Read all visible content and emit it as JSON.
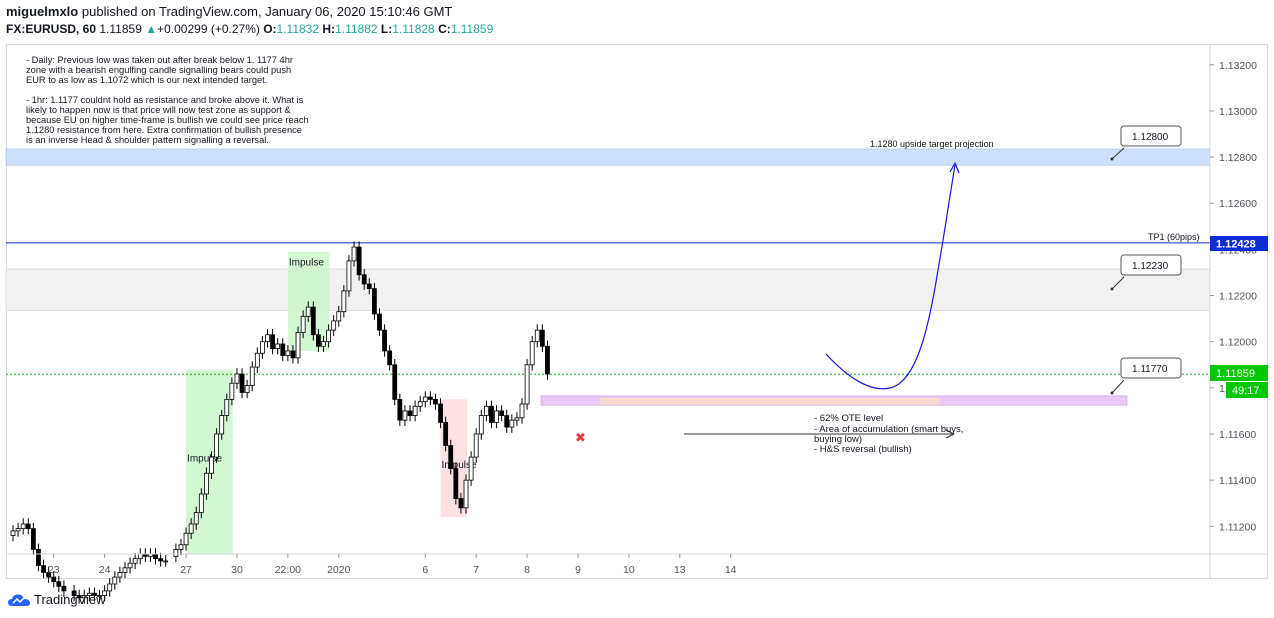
{
  "header": {
    "author": "miguelmxlo",
    "published_text": "published on TradingView.com, January 06, 2020 15:10:46 GMT",
    "symbol": "FX:EURUSD, 60",
    "last": "1.11859",
    "change": "+0.00299 (+0.27%)",
    "o_label": "O:",
    "o": "1.11832",
    "h_label": "H:",
    "h": "1.11882",
    "l_label": "L:",
    "l": "1.11828",
    "c_label": "C:",
    "c": "1.11859"
  },
  "notes": {
    "daily": "- Daily: Previous low was taken out after break below 1. 1177 4hr zone with a bearish engulfing candle signalling bears could push EUR to as low as 1.1072 which is our next intended target.",
    "hourly": "- 1hr: 1.1177 couldnt hold as resistance and broke above it. What is likely to happen now is that price will now test zone as support & because EU on higher time-frame is bullish we could see price reach 1.1280 resistance from here. Extra confirmation of bullish presence is an inverse Head & shoulder pattern signalling a reversal."
  },
  "annotations": {
    "target_projection": "1.1280 upside target projection",
    "tp1": "TP1 (60pips)",
    "impulse": "Impulse",
    "ote": "- 62% OTE level",
    "accumulation": "- Area of accumulation (smart buys,",
    "accumulation2": "buying low)",
    "hs": "- H&S reversal (bullish)"
  },
  "callouts": [
    "1.12800",
    "1.12230",
    "1.11770"
  ],
  "price_tags": {
    "tp1": "1.12428",
    "last": "1.11859",
    "countdown": "49:17"
  },
  "branding": {
    "name": "TradingView"
  },
  "colors": {
    "up": "#26a69a",
    "line_blue": "#0d2cd6",
    "last_green": "#00c800",
    "zone_blue": "#cfe0fa",
    "zone_gray": "#f1f1f1",
    "zone_purple": "#e8c8f5",
    "impulse_green": "#c8f5c8",
    "impulse_red": "#fadada"
  },
  "chart_data": {
    "type": "candlestick",
    "title": "FX:EURUSD, 60",
    "xlabel": "",
    "ylabel": "",
    "ylim": [
      1.1108,
      1.1329
    ],
    "y_ticks": [
      "1.13200",
      "1.13000",
      "1.12800",
      "1.12600",
      "1.12400",
      "1.12200",
      "1.12000",
      "1.11800",
      "1.11600",
      "1.11400",
      "1.11200"
    ],
    "y_tick_values": [
      1.132,
      1.13,
      1.128,
      1.126,
      1.124,
      1.122,
      1.12,
      1.118,
      1.116,
      1.114,
      1.112
    ],
    "x_ticks": [
      "23",
      "24",
      "27",
      "30",
      "22:00",
      "2020",
      "6",
      "7",
      "8",
      "9",
      "10",
      "13",
      "14"
    ],
    "x_tick_index": [
      8,
      18,
      34,
      44,
      54,
      64,
      81,
      91,
      101,
      111,
      121,
      131,
      141
    ],
    "close": [
      1.1118,
      1.1119,
      1.1121,
      1.1119,
      1.111,
      1.1103,
      1.11,
      1.1098,
      1.1096,
      1.1094,
      1.1092,
      1.1092,
      1.109,
      1.1089,
      1.109,
      1.1091,
      1.109,
      1.109,
      1.1092,
      1.1095,
      1.1098,
      1.11,
      1.1102,
      1.1104,
      1.1106,
      1.1108,
      1.1107,
      1.1108,
      1.1106,
      1.1105,
      1.1105,
      1.1107,
      1.111,
      1.1112,
      1.1117,
      1.1121,
      1.1126,
      1.1134,
      1.1143,
      1.115,
      1.116,
      1.1168,
      1.1175,
      1.1182,
      1.1186,
      1.1178,
      1.1181,
      1.1189,
      1.1195,
      1.12,
      1.1203,
      1.1197,
      1.1199,
      1.1194,
      1.1196,
      1.1193,
      1.1204,
      1.1211,
      1.1215,
      1.1203,
      1.1198,
      1.12,
      1.1205,
      1.1209,
      1.1213,
      1.1222,
      1.1235,
      1.1241,
      1.1229,
      1.1225,
      1.1223,
      1.1212,
      1.1205,
      1.1196,
      1.119,
      1.1175,
      1.1166,
      1.117,
      1.1168,
      1.1172,
      1.1174,
      1.1176,
      1.1175,
      1.1173,
      1.1165,
      1.1155,
      1.1145,
      1.1132,
      1.1128,
      1.114,
      1.115,
      1.116,
      1.1168,
      1.1172,
      1.1165,
      1.117,
      1.1168,
      1.1163,
      1.1166,
      1.1167,
      1.1173,
      1.119,
      1.12,
      1.1205,
      1.1198,
      1.1186
    ],
    "last_price": 1.11859,
    "levels": {
      "tp1": 1.12428,
      "callout_top": 1.128,
      "callout_mid": 1.1223,
      "callout_low": 1.1177
    },
    "zones": {
      "blue": [
        1.12765,
        1.12835
      ],
      "gray": [
        1.12135,
        1.12315
      ],
      "purple": [
        1.11725,
        1.11765
      ]
    },
    "impulse_boxes": [
      {
        "label": "Impulse",
        "i0": 34,
        "i1": 42,
        "y0": 1.1108,
        "y1": 1.1188,
        "color": "green"
      },
      {
        "label": "Impulse",
        "i0": 54,
        "i1": 61,
        "y0": 1.1196,
        "y1": 1.1239,
        "color": "green"
      },
      {
        "label": "Impulse",
        "i0": 84,
        "i1": 88,
        "y0": 1.1124,
        "y1": 1.1175,
        "color": "red"
      }
    ]
  }
}
